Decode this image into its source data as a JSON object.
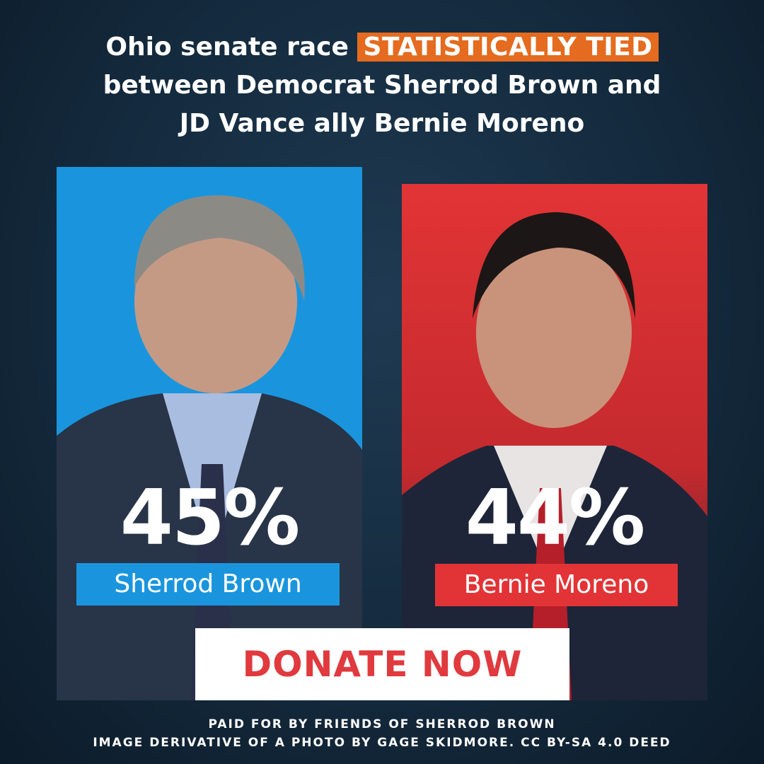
{
  "headline": {
    "lead": "Ohio senate race",
    "highlight": "STATISTICALLY TIED",
    "line2": "between Democrat Sherrod Brown and",
    "line3": "JD Vance ally Bernie Moreno"
  },
  "candidates": [
    {
      "percent": "45%",
      "name": "Sherrod Brown"
    },
    {
      "percent": "44%",
      "name": "Bernie Moreno"
    }
  ],
  "button": "DONATE NOW",
  "footer": [
    "PAID FOR BY FRIENDS OF SHERROD BROWN",
    "IMAGE DERIVATIVE OF A PHOTO BY GAGE SKIDMORE. CC BY-SA 4.0 DEED"
  ]
}
